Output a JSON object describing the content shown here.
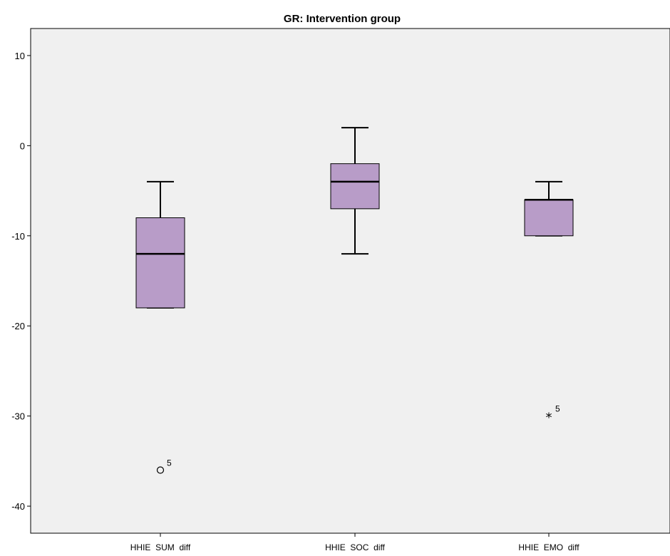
{
  "chart_data": {
    "type": "boxplot",
    "title": "GR: Intervention group",
    "xlabel": "",
    "ylabel": "",
    "ylim": [
      -43,
      13
    ],
    "yticks": [
      10,
      0,
      -10,
      -20,
      -30,
      -40
    ],
    "grid": false,
    "categories": [
      "HHIE  SUM  diff",
      "HHIE  SOC  diff",
      "HHIE  EMO  diff"
    ],
    "boxes": [
      {
        "category": "HHIE  SUM  diff",
        "whisker_low": -18,
        "q1": -18,
        "median": -12,
        "q3": -8,
        "whisker_high": -4,
        "outliers": [
          {
            "value": -36,
            "label": "5",
            "marker": "circle"
          }
        ]
      },
      {
        "category": "HHIE  SOC  diff",
        "whisker_low": -12,
        "q1": -7,
        "median": -4,
        "q3": -2,
        "whisker_high": 2,
        "outliers": []
      },
      {
        "category": "HHIE  EMO  diff",
        "whisker_low": -10,
        "q1": -10,
        "median": -6,
        "q3": -6,
        "whisker_high": -4,
        "outliers": [
          {
            "value": -30,
            "label": "5",
            "marker": "star"
          }
        ]
      }
    ],
    "colors": {
      "plot_background": "#f0f0f0",
      "box_fill": "#b89cc8",
      "stroke": "#000000"
    }
  }
}
